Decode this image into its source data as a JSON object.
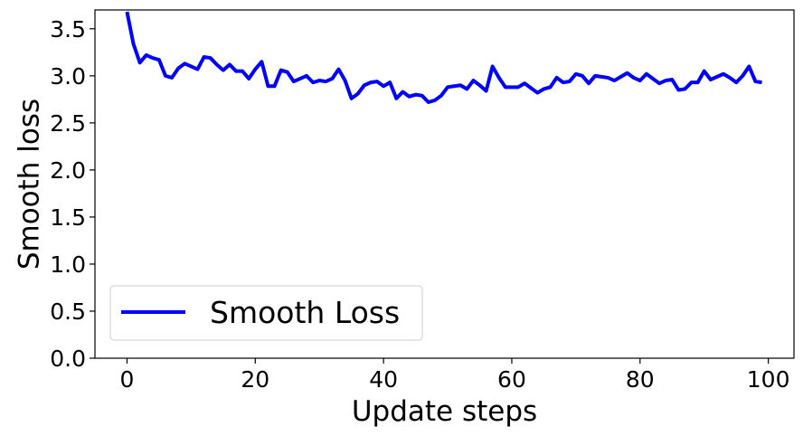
{
  "chart_data": {
    "type": "line",
    "xlabel": "Update steps",
    "ylabel": "Smooth loss",
    "xlim": [
      -5,
      104
    ],
    "ylim": [
      0,
      3.7
    ],
    "x_ticks": [
      0,
      20,
      40,
      60,
      80,
      100
    ],
    "x_tick_labels": [
      "0",
      "20",
      "40",
      "60",
      "80",
      "100"
    ],
    "y_ticks": [
      0.0,
      0.5,
      1.0,
      1.5,
      2.0,
      2.5,
      3.0,
      3.5
    ],
    "y_tick_labels": [
      "0.0",
      "0.5",
      "1.0",
      "1.5",
      "2.0",
      "2.5",
      "3.0",
      "3.5"
    ],
    "grid": false,
    "legend_position": "lower-left",
    "series": [
      {
        "name": "Smooth Loss",
        "color": "#0000ff",
        "x": [
          0,
          1,
          2,
          3,
          4,
          5,
          6,
          7,
          8,
          9,
          10,
          11,
          12,
          13,
          14,
          15,
          16,
          17,
          18,
          19,
          20,
          21,
          22,
          23,
          24,
          25,
          26,
          27,
          28,
          29,
          30,
          31,
          32,
          33,
          34,
          35,
          36,
          37,
          38,
          39,
          40,
          41,
          42,
          43,
          44,
          45,
          46,
          47,
          48,
          49,
          50,
          51,
          52,
          53,
          54,
          55,
          56,
          57,
          58,
          59,
          60,
          61,
          62,
          63,
          64,
          65,
          66,
          67,
          68,
          69,
          70,
          71,
          72,
          73,
          74,
          75,
          76,
          77,
          78,
          79,
          80,
          81,
          82,
          83,
          84,
          85,
          86,
          87,
          88,
          89,
          90,
          91,
          92,
          93,
          94,
          95,
          96,
          97,
          98,
          99
        ],
        "y": [
          3.68,
          3.34,
          3.14,
          3.22,
          3.19,
          3.17,
          3.0,
          2.98,
          3.08,
          3.13,
          3.1,
          3.07,
          3.2,
          3.19,
          3.12,
          3.06,
          3.12,
          3.05,
          3.05,
          2.97,
          3.07,
          3.15,
          2.89,
          2.89,
          3.06,
          3.04,
          2.94,
          2.97,
          3.0,
          2.93,
          2.95,
          2.94,
          2.97,
          3.07,
          2.95,
          2.76,
          2.81,
          2.9,
          2.93,
          2.94,
          2.89,
          2.93,
          2.76,
          2.83,
          2.78,
          2.8,
          2.79,
          2.72,
          2.74,
          2.79,
          2.88,
          2.89,
          2.9,
          2.86,
          2.95,
          2.9,
          2.84,
          3.1,
          2.98,
          2.88,
          2.88,
          2.88,
          2.92,
          2.87,
          2.82,
          2.86,
          2.88,
          2.98,
          2.93,
          2.94,
          3.02,
          3.0,
          2.92,
          3.0,
          2.99,
          2.98,
          2.95,
          2.99,
          3.03,
          2.98,
          2.95,
          3.02,
          2.97,
          2.92,
          2.95,
          2.96,
          2.85,
          2.86,
          2.93,
          2.93,
          3.05,
          2.96,
          2.99,
          3.02,
          2.98,
          2.93,
          3.0,
          3.1,
          2.94,
          2.93
        ]
      }
    ]
  }
}
